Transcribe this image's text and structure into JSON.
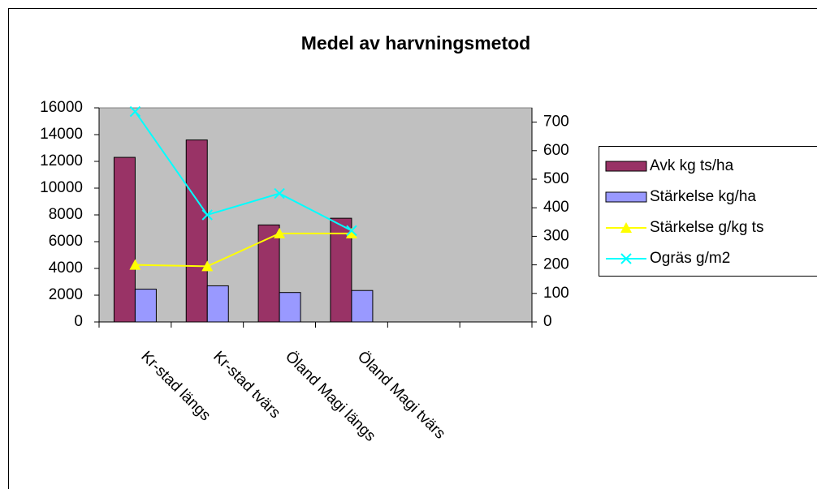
{
  "chart_data": {
    "type": "bar",
    "title": "Medel av harvningsmetod",
    "categories": [
      "Kr-stad längs",
      "Kr-stad tvärs",
      "Öland Magi längs",
      "Öland Magi tvärs",
      null,
      null
    ],
    "series": [
      {
        "name": "Avk kg ts/ha",
        "color": "#993366",
        "type": "bar",
        "values": [
          12300,
          13600,
          7250,
          7750,
          null,
          null
        ]
      },
      {
        "name": "Stärkelse kg/ha",
        "color": "#9999ff",
        "type": "bar",
        "values": [
          2450,
          2700,
          2200,
          2350,
          null,
          null
        ]
      },
      {
        "name": "Stärkelse g/kg ts",
        "color": "#ffff00",
        "type": "line",
        "marker": "triangle",
        "axis": "y2",
        "values": [
          200,
          195,
          310,
          310,
          null,
          null
        ]
      },
      {
        "name": "Ogräs g/m2",
        "color": "#00ffff",
        "type": "line",
        "marker": "x",
        "axis": "y2",
        "values": [
          737,
          375,
          450,
          320,
          null,
          null
        ]
      }
    ],
    "ylim": [
      0,
      16000
    ],
    "yticks": [
      0,
      2000,
      4000,
      6000,
      8000,
      10000,
      12000,
      14000,
      16000
    ],
    "y2lim": [
      0,
      750
    ],
    "y2ticks": [
      0,
      100,
      200,
      300,
      400,
      500,
      600,
      700
    ],
    "plot_background": "#c0c0c0",
    "legend": "right"
  }
}
